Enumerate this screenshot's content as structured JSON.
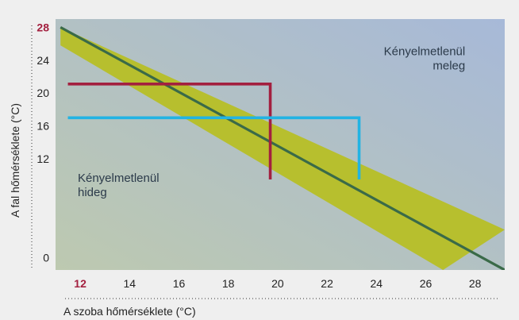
{
  "chart_data": {
    "type": "line",
    "xlabel": "A szoba hőmérséklete (°C)",
    "ylabel": "A fal hőmérséklete (°C)",
    "xlim": [
      11,
      29.2
    ],
    "ylim": [
      -1.5,
      29
    ],
    "x_ticks": [
      12,
      14,
      16,
      18,
      20,
      22,
      24,
      26,
      28
    ],
    "y_ticks": [
      0,
      12,
      16,
      20,
      24,
      28
    ],
    "highlighted_ticks": {
      "x": 12,
      "y": 28
    },
    "comfort_line": {
      "points": [
        [
          11.2,
          28
        ],
        [
          29.2,
          -1.5
        ]
      ]
    },
    "comfort_band": {
      "upper": [
        [
          11.2,
          28
        ],
        [
          29.2,
          3.4
        ]
      ],
      "lower": [
        [
          11.2,
          25.8
        ],
        [
          26.7,
          -1.5
        ]
      ]
    },
    "series": [
      {
        "color": "#a3203f",
        "points": [
          [
            11.5,
            21.1
          ],
          [
            19.7,
            21.1
          ],
          [
            19.7,
            9.5
          ]
        ]
      },
      {
        "color": "#22b3e3",
        "points": [
          [
            11.5,
            17.0
          ],
          [
            23.3,
            17.0
          ],
          [
            23.3,
            9.5
          ]
        ]
      }
    ],
    "annotations": [
      {
        "lines": [
          "Kényelmetlenül",
          "meleg"
        ],
        "x": 27.6,
        "y": 24.6,
        "align": "end"
      },
      {
        "lines": [
          "Kényelmetlenül",
          "hideg"
        ],
        "x": 11.9,
        "y": 9.2,
        "align": "start"
      }
    ],
    "colors": {
      "band": "#b7bf2e",
      "line": "#3a6a48",
      "bg_top_right": "#a7b9d8",
      "bg_bottom_left": "#bdc9b0"
    }
  }
}
